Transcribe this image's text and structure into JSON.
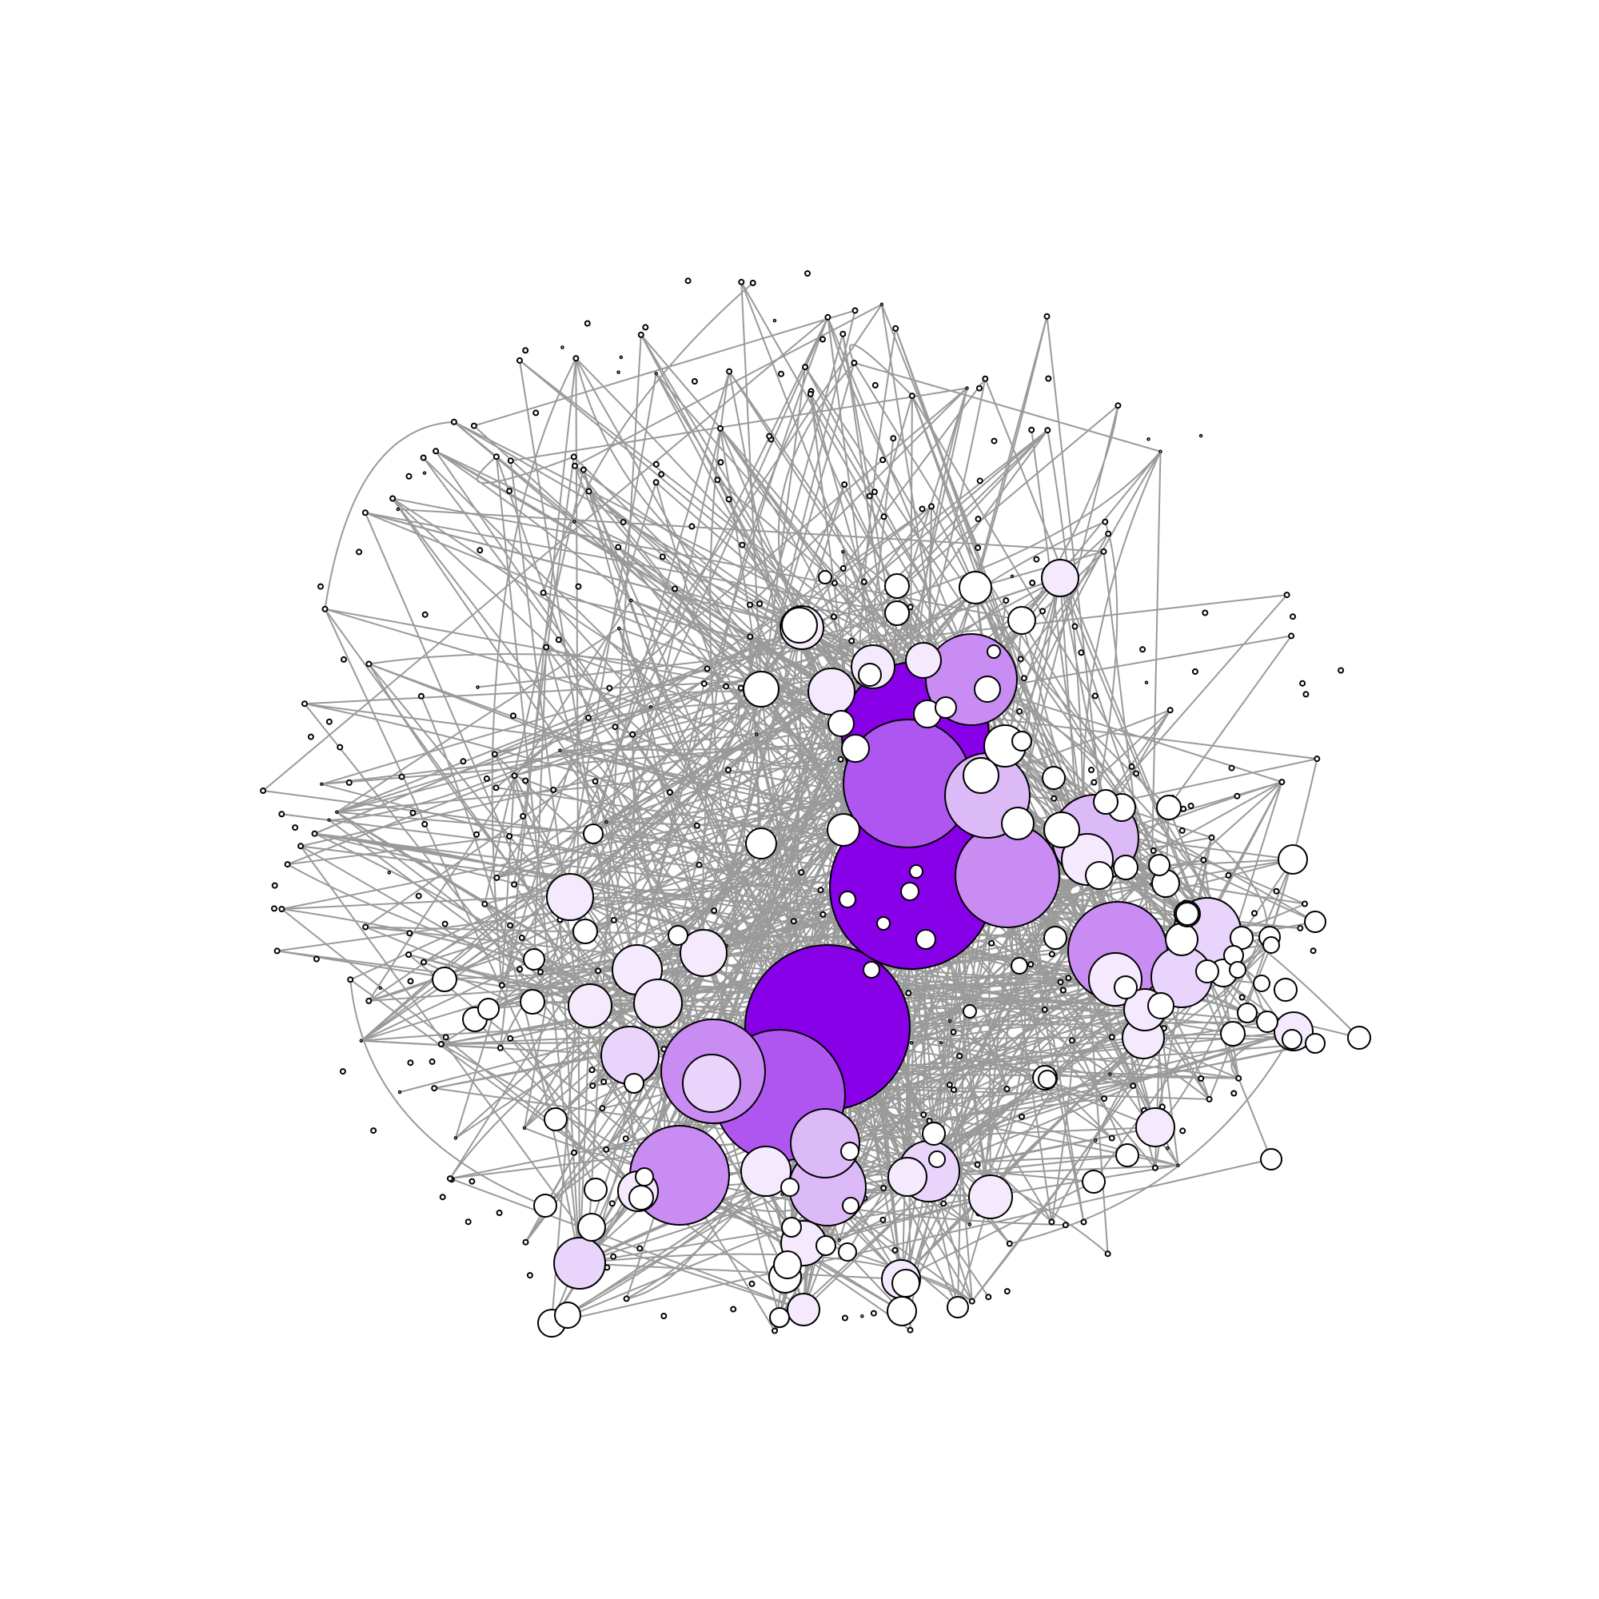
{
  "diagram": {
    "type": "network-graph",
    "layout": "force-directed",
    "edge_color": "#9a9a9a",
    "node_stroke_color": "#000000",
    "background_color": "#ffffff",
    "node_size_encodes": "centrality",
    "node_fill_scale": [
      "#ffffff",
      "#f5eafd",
      "#e9d4fb",
      "#dcb9f7",
      "#c98cf2",
      "#b056f0",
      "#8800e8"
    ],
    "labels": []
  }
}
